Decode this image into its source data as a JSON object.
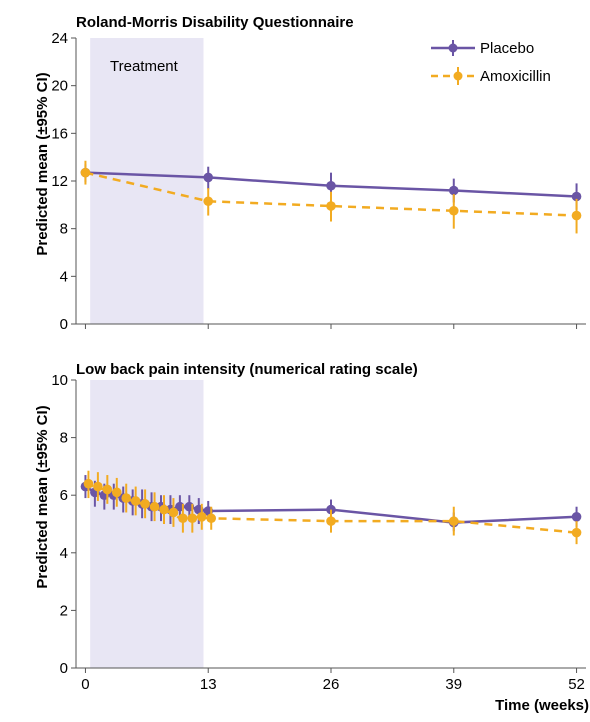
{
  "chart_data": [
    {
      "type": "line",
      "title": "Roland-Morris Disability Questionnaire",
      "ylabel": "Predicted mean (±95% CI)",
      "xlabel": "",
      "ylim": [
        0,
        24
      ],
      "yticks": [
        0,
        4,
        8,
        12,
        16,
        20,
        24
      ],
      "xlim": [
        -1,
        53
      ],
      "xticks": [
        0,
        13,
        26,
        39,
        52
      ],
      "x_tick_labels_shown": false,
      "shaded_region": {
        "label": "Treatment",
        "x_start": 0.5,
        "x_end": 12.5
      },
      "legend": {
        "position": "top-right"
      },
      "series": [
        {
          "name": "Placebo",
          "color": "#6a55a5",
          "style": "solid",
          "x": [
            0,
            13,
            26,
            39,
            52
          ],
          "y": [
            12.7,
            12.3,
            11.6,
            11.2,
            10.7
          ],
          "lower": [
            11.9,
            11.3,
            10.4,
            10.2,
            9.6
          ],
          "upper": [
            13.4,
            13.2,
            12.7,
            12.2,
            11.8
          ]
        },
        {
          "name": "Amoxicillin",
          "color": "#f2ab21",
          "style": "dashed",
          "x": [
            0,
            13,
            26,
            39,
            52
          ],
          "y": [
            12.7,
            10.3,
            9.9,
            9.5,
            9.1
          ],
          "lower": [
            11.7,
            9.1,
            8.6,
            8.0,
            7.6
          ],
          "upper": [
            13.7,
            11.4,
            11.1,
            10.9,
            10.5
          ]
        }
      ]
    },
    {
      "type": "line",
      "title": "Low back pain intensity (numerical rating scale)",
      "ylabel": "Predicted mean (±95% CI)",
      "xlabel": "Time (weeks)",
      "ylim": [
        0,
        10
      ],
      "yticks": [
        0,
        2,
        4,
        6,
        8,
        10
      ],
      "xlim": [
        -1,
        53
      ],
      "xticks": [
        0,
        13,
        26,
        39,
        52
      ],
      "x_tick_labels_shown": true,
      "shaded_region": {
        "label": "",
        "x_start": 0.5,
        "x_end": 12.5
      },
      "series": [
        {
          "name": "Placebo",
          "color": "#6a55a5",
          "style": "solid",
          "x": [
            0,
            1,
            2,
            3,
            4,
            5,
            6,
            7,
            8,
            9,
            10,
            11,
            12,
            13,
            26,
            39,
            52
          ],
          "y": [
            6.3,
            6.1,
            6.0,
            6.0,
            5.9,
            5.8,
            5.7,
            5.6,
            5.6,
            5.5,
            5.6,
            5.6,
            5.5,
            5.45,
            5.5,
            5.05,
            5.25
          ],
          "lower": [
            5.9,
            5.6,
            5.5,
            5.5,
            5.4,
            5.3,
            5.2,
            5.1,
            5.1,
            5.0,
            5.1,
            5.1,
            5.0,
            5.1,
            5.15,
            4.75,
            4.9
          ],
          "upper": [
            6.7,
            6.5,
            6.4,
            6.4,
            6.3,
            6.2,
            6.2,
            6.1,
            6.0,
            6.0,
            6.0,
            6.0,
            5.9,
            5.8,
            5.85,
            5.4,
            5.6
          ]
        },
        {
          "name": "Amoxicillin",
          "color": "#f2ab21",
          "style": "dashed",
          "x": [
            0,
            1,
            2,
            3,
            4,
            5,
            6,
            7,
            8,
            9,
            10,
            11,
            12,
            13,
            26,
            39,
            52
          ],
          "y": [
            6.4,
            6.3,
            6.2,
            6.1,
            5.9,
            5.8,
            5.7,
            5.6,
            5.5,
            5.4,
            5.2,
            5.2,
            5.25,
            5.2,
            5.1,
            5.1,
            4.7
          ],
          "lower": [
            5.9,
            5.8,
            5.7,
            5.6,
            5.4,
            5.3,
            5.2,
            5.1,
            5.0,
            4.9,
            4.7,
            4.7,
            4.8,
            4.8,
            4.7,
            4.6,
            4.3
          ],
          "upper": [
            6.85,
            6.8,
            6.7,
            6.6,
            6.4,
            6.3,
            6.2,
            6.1,
            6.0,
            5.9,
            5.7,
            5.7,
            5.7,
            5.6,
            5.5,
            5.6,
            5.1
          ]
        }
      ]
    }
  ]
}
